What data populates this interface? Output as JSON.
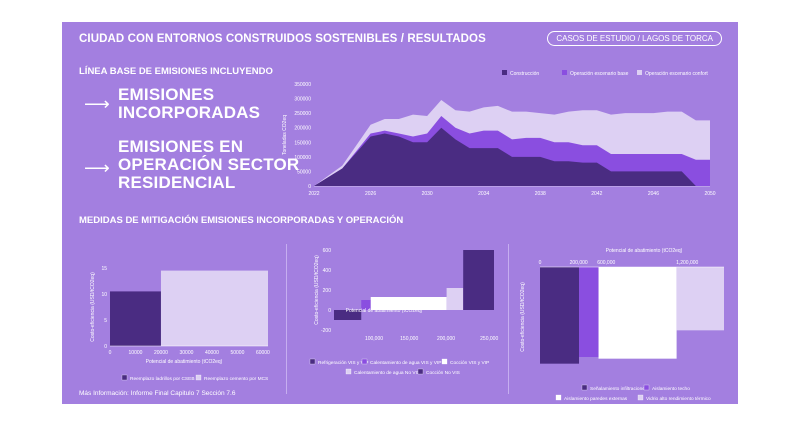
{
  "header": {
    "title": "CIUDAD CON ENTORNOS CONSTRUIDOS SOSTENIBLES / RESULTADOS",
    "pill": "CASOS DE ESTUDIO / LAGOS DE TORCA"
  },
  "left": {
    "subtitle": "LÍNEA BASE DE EMISIONES INCLUYENDO",
    "line1a": "EMISIONES",
    "line1b": "INCORPORADAS",
    "line2a": "EMISIONES EN",
    "line2b": "OPERACIÓN SECTOR",
    "line2c": "RESIDENCIAL",
    "arrow": "⟶"
  },
  "section2": {
    "title": "MEDIDAS DE MITIGACIÓN EMISIONES INCORPORADAS Y  OPERACIÓN"
  },
  "footer": {
    "text": "Más Información: Informe Final Capitulo 7 Sección 7.6"
  },
  "colors": {
    "bg": "#a37fe0",
    "dark": "#4a2c82",
    "mid": "#8a4ee0",
    "light": "#ddd0f3",
    "white": "#ffffff"
  },
  "chart_data": [
    {
      "type": "area",
      "title": "",
      "ylabel": "Toneladas CO2eq",
      "ylim": [
        0,
        350000
      ],
      "yticks": [
        "0",
        "50000",
        "100000",
        "150000",
        "200000",
        "250000",
        "300000",
        "350000"
      ],
      "xticks": [
        "2022",
        "2026",
        "2030",
        "2034",
        "2038",
        "2042",
        "2046",
        "2050"
      ],
      "xlim": [
        2022,
        2050
      ],
      "legend": [
        "Construcción",
        "Operación escenario base",
        "Operación escenario confort"
      ],
      "x": [
        2022,
        2024,
        2026,
        2027,
        2028,
        2029,
        2030,
        2031,
        2032,
        2033,
        2034,
        2035,
        2036,
        2037,
        2038,
        2039,
        2040,
        2041,
        2042,
        2043,
        2044,
        2045,
        2046,
        2047,
        2048,
        2049,
        2050
      ],
      "series": [
        {
          "name": "Construcción",
          "values": [
            0,
            60000,
            170000,
            180000,
            170000,
            150000,
            150000,
            200000,
            160000,
            130000,
            130000,
            130000,
            100000,
            100000,
            100000,
            85000,
            85000,
            80000,
            80000,
            50000,
            50000,
            50000,
            50000,
            50000,
            50000,
            0,
            0
          ]
        },
        {
          "name": "Operación escenario base",
          "values": [
            0,
            60000,
            180000,
            190000,
            180000,
            170000,
            180000,
            240000,
            200000,
            180000,
            190000,
            190000,
            160000,
            165000,
            165000,
            150000,
            150000,
            140000,
            140000,
            110000,
            110000,
            110000,
            110000,
            110000,
            110000,
            90000,
            90000
          ]
        },
        {
          "name": "Operación escenario confort",
          "values": [
            0,
            70000,
            210000,
            230000,
            230000,
            245000,
            240000,
            295000,
            260000,
            255000,
            270000,
            275000,
            255000,
            255000,
            250000,
            245000,
            255000,
            260000,
            260000,
            245000,
            250000,
            250000,
            250000,
            255000,
            255000,
            225000,
            225000
          ]
        }
      ]
    },
    {
      "type": "bar",
      "xlabel": "Potencial de abatimiento (tCO2eq)",
      "ylabel": "Costo-eficiencia (USD/tCO2eq)",
      "xticks": [
        "0",
        "10000",
        "20000",
        "30000",
        "40000",
        "50000",
        "60000"
      ],
      "xlim": [
        0,
        65000
      ],
      "ylim": [
        0,
        15
      ],
      "yticks": [
        "0",
        "5",
        "10",
        "15"
      ],
      "series": [
        {
          "name": "Reemplazo ladrillos por CSEB",
          "x_start": 0,
          "x_end": 20000,
          "value": 10.5
        },
        {
          "name": "Reemplazo cemento por MCS",
          "x_start": 20000,
          "x_end": 62000,
          "value": 14.5
        }
      ]
    },
    {
      "type": "bar",
      "xlabel": "Potencial de abatimiento (tCO2eq)",
      "ylabel": "Costo-eficiencia (USD/tCO2eq)",
      "xticks": [
        "100,000",
        "150,000",
        "200,000",
        "250,000"
      ],
      "ylim": [
        -200,
        600
      ],
      "yticks": [
        "-200",
        "0",
        "200",
        "400",
        "600"
      ],
      "series": [
        {
          "name": "Refrigeración VIS y VIP",
          "x_start": 0,
          "x_end": 46000,
          "value": -100
        },
        {
          "name": "Calentamiento de agua VIS y VIP",
          "x_start": 46000,
          "x_end": 62000,
          "value": 100
        },
        {
          "name": "Cocción VIS y VIP",
          "x_start": 62000,
          "x_end": 190000,
          "value": 130
        },
        {
          "name": "Calentamiento de agua No VIS",
          "x_start": 190000,
          "x_end": 218000,
          "value": 220
        },
        {
          "name": "Cocción No VIS",
          "x_start": 218000,
          "x_end": 270000,
          "value": 600
        }
      ]
    },
    {
      "type": "bar",
      "xlabel": "Potencial de abatimiento (tCO2eq)",
      "ylabel": "Costo-eficiencia (USD/tCO2eq)",
      "xticks": [
        "0",
        "200,000",
        "600,000",
        "1,200,000"
      ],
      "ylim": [
        -300,
        0
      ],
      "series": [
        {
          "name": "Señalamiento infiltraciones",
          "x_start": 0,
          "x_end": 280000,
          "value": -290
        },
        {
          "name": "Aislamiento techo",
          "x_start": 280000,
          "x_end": 420000,
          "value": -270
        },
        {
          "name": "Aislamiento paredes externas",
          "x_start": 420000,
          "x_end": 980000,
          "value": -275
        },
        {
          "name": "Vidrio alto rendimiento térmico",
          "x_start": 980000,
          "x_end": 1320000,
          "value": -190
        }
      ]
    }
  ]
}
